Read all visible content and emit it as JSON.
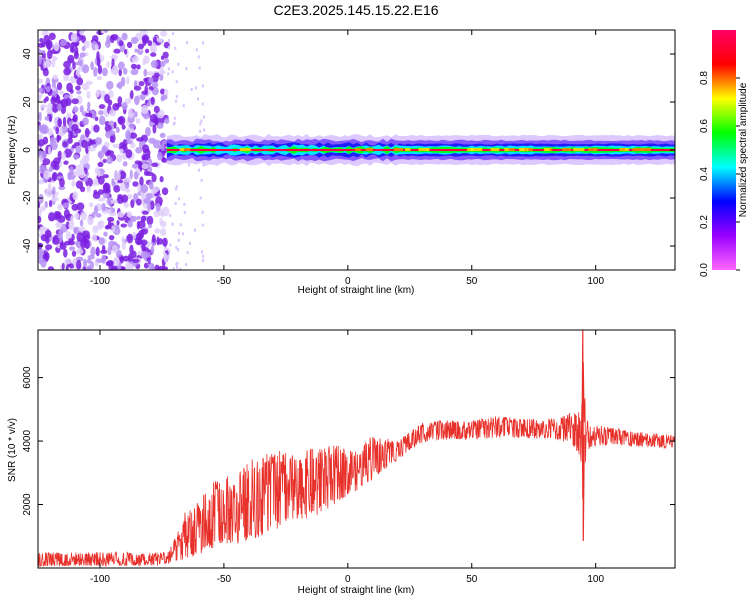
{
  "figure": {
    "title": "C2E3.2025.145.15.22.E16"
  },
  "colors": {
    "snr_line": "#e8302a",
    "spectro_bg_noise": "#7a1fe0",
    "spectro_light": "#d9c2ff",
    "axis": "#000000"
  },
  "chart_data": [
    {
      "type": "heatmap",
      "title": "C2E3.2025.145.15.22.E16",
      "xlabel": "Height of straight line (km)",
      "ylabel": "Frequency (Hz)",
      "xlim": [
        -125,
        132
      ],
      "ylim": [
        -50,
        50
      ],
      "x_ticks": [
        -100,
        -50,
        0,
        50,
        100
      ],
      "y_ticks": [
        -40,
        -20,
        0,
        20,
        40
      ],
      "colorbar": {
        "label": "Normalized spectral amplitude",
        "range": [
          0,
          1
        ],
        "ticks": [
          "0.0",
          "0.2",
          "0.4",
          "0.6",
          "0.8"
        ],
        "tick_values": [
          0.0,
          0.2,
          0.4,
          0.6,
          0.8
        ],
        "stops": [
          "#ff66ff",
          "#9900ff",
          "#0000ff",
          "#00ffff",
          "#00ff00",
          "#ffff00",
          "#ff0000",
          "#ff0066"
        ]
      },
      "regions": [
        {
          "x_range": [
            -125,
            -73
          ],
          "description_values": "broadband noise across all frequencies, amplitude ~0.05–0.15"
        },
        {
          "x_range": [
            -73,
            132
          ],
          "signal_frequency_hz": 0,
          "peak_amplitude": 0.95
        }
      ]
    },
    {
      "type": "line",
      "xlabel": "Height of straight line (km)",
      "ylabel": "SNR (10 * v/v)",
      "xlim": [
        -125,
        132
      ],
      "ylim": [
        0,
        7500
      ],
      "x_ticks": [
        -100,
        -50,
        0,
        50,
        100
      ],
      "y_ticks": [
        2000,
        4000,
        6000
      ],
      "series": [
        {
          "x": [
            -125,
            -110,
            -90,
            -75,
            -70,
            -65,
            -60,
            -55,
            -50,
            -45,
            -40,
            -35,
            -30,
            -25,
            -20,
            -15,
            -10,
            -5,
            0,
            5,
            10,
            15,
            20,
            25,
            30,
            40,
            50,
            60,
            70,
            80,
            90,
            94,
            95,
            96,
            100,
            110,
            120,
            132
          ],
          "y": [
            200,
            220,
            260,
            300,
            400,
            800,
            1100,
            1200,
            1500,
            1500,
            1800,
            1900,
            2100,
            2200,
            2300,
            2400,
            2500,
            2800,
            3000,
            3100,
            3300,
            3500,
            3700,
            3900,
            4200,
            4300,
            4350,
            4400,
            4400,
            4400,
            4300,
            4300,
            900,
            4200,
            4100,
            4100,
            4050,
            4000
          ],
          "envelope_max": [
            500,
            500,
            500,
            500,
            900,
            1900,
            2100,
            2700,
            2900,
            2900,
            3400,
            3500,
            3800,
            3700,
            3500,
            3800,
            3800,
            3900,
            3700,
            3800,
            4200,
            4100,
            4000,
            4300,
            4600,
            4650,
            4650,
            4800,
            4700,
            4700,
            4900,
            5000,
            7500,
            4800,
            4500,
            4400,
            4300,
            4200
          ],
          "envelope_min": [
            50,
            60,
            60,
            80,
            150,
            300,
            400,
            600,
            800,
            700,
            900,
            1000,
            1200,
            1300,
            1500,
            1600,
            1700,
            2000,
            2300,
            2500,
            2800,
            3100,
            3400,
            3700,
            3950,
            4050,
            4050,
            4100,
            4100,
            4050,
            3950,
            3500,
            850,
            3700,
            3850,
            3850,
            3800,
            3750
          ]
        }
      ]
    }
  ]
}
